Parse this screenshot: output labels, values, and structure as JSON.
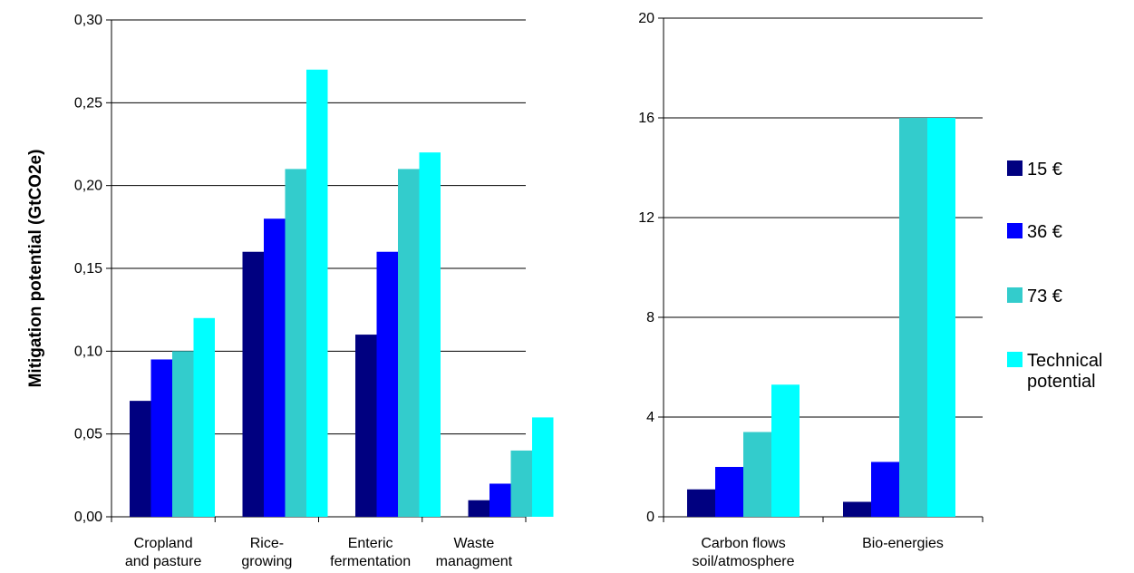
{
  "chart_data": [
    {
      "type": "bar",
      "title": "",
      "xlabel": "",
      "ylabel": "Mitigation potential (GtCO2e)",
      "ylim": [
        0,
        0.3
      ],
      "yticks": [
        "0,00",
        "0,05",
        "0,10",
        "0,15",
        "0,20",
        "0,25",
        "0,30"
      ],
      "categories": [
        [
          "Cropland",
          "and pasture"
        ],
        [
          "Rice-",
          "growing"
        ],
        [
          "Enteric",
          "fermentation"
        ],
        [
          "Waste",
          "managment"
        ]
      ],
      "series": [
        {
          "name": "15 €",
          "color": "#000080",
          "values": [
            0.07,
            0.16,
            0.11,
            0.01
          ]
        },
        {
          "name": "36 €",
          "color": "#0000FF",
          "values": [
            0.095,
            0.18,
            0.16,
            0.02
          ]
        },
        {
          "name": "73 €",
          "color": "#33CCCC",
          "values": [
            0.1,
            0.21,
            0.21,
            0.04
          ]
        },
        {
          "name": "Technical potential",
          "color": "#00FFFF",
          "values": [
            0.12,
            0.27,
            0.22,
            0.06
          ]
        }
      ],
      "grid": true
    },
    {
      "type": "bar",
      "title": "",
      "xlabel": "",
      "ylabel": "",
      "ylim": [
        0,
        20
      ],
      "yticks": [
        "0",
        "4",
        "8",
        "12",
        "16",
        "20"
      ],
      "categories": [
        [
          "Carbon flows",
          "soil/atmosphere"
        ],
        [
          "Bio-energies"
        ]
      ],
      "series": [
        {
          "name": "15 €",
          "color": "#000080",
          "values": [
            1.1,
            0.6
          ]
        },
        {
          "name": "36 €",
          "color": "#0000FF",
          "values": [
            2.0,
            2.2
          ]
        },
        {
          "name": "73 €",
          "color": "#33CCCC",
          "values": [
            3.4,
            16
          ]
        },
        {
          "name": "Technical potential",
          "color": "#00FFFF",
          "values": [
            5.3,
            16
          ]
        }
      ],
      "grid": true
    }
  ],
  "legend": {
    "placement": "right",
    "items": [
      {
        "lines": [
          "15 €"
        ],
        "color": "#000080"
      },
      {
        "lines": [
          "36 €"
        ],
        "color": "#0000FF"
      },
      {
        "lines": [
          "73 €"
        ],
        "color": "#33CCCC"
      },
      {
        "lines": [
          "Technical",
          "potential"
        ],
        "color": "#00FFFF"
      }
    ]
  }
}
